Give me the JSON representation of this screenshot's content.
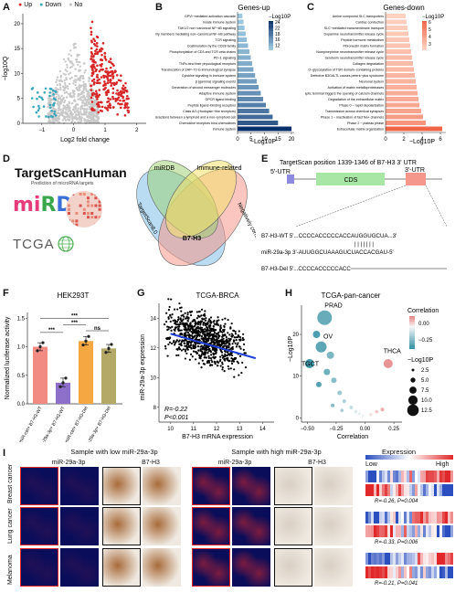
{
  "letters": {
    "A": "A",
    "B": "B",
    "C": "C",
    "D": "D",
    "E": "E",
    "F": "F",
    "G": "G",
    "H": "H",
    "I": "I"
  },
  "panelA": {
    "legend": [
      {
        "label": "Up",
        "color": "#d62728"
      },
      {
        "label": "Down",
        "color": "#3aa6b9"
      },
      {
        "label": "No",
        "color": "#bdbdbd"
      }
    ],
    "xlabel": "Log2 fold change",
    "ylabel": "−log10Q",
    "xticks": [
      "−1",
      "0",
      "1",
      "2"
    ],
    "yticks": [
      "0",
      "5",
      "10",
      "15",
      "20"
    ]
  },
  "panelB": {
    "title": "Genes-up",
    "xlabel": "−Log10P",
    "legend_title": "−Log10P",
    "legend_ticks": [
      "24",
      "22",
      "18",
      "16",
      "12"
    ],
    "xticks": [
      "0",
      "5",
      "10",
      "15",
      "20"
    ],
    "color_low": "#9ecae1",
    "color_high": "#08306b",
    "terms": [
      {
        "label": "GPVI−mediated activation cascade",
        "value": 1.8
      },
      {
        "label": "Innate immune system",
        "value": 2.2
      },
      {
        "label": "TAK1/2 non−canonical NF−kB signaling",
        "value": 2.6
      },
      {
        "label": "TNF receptor superfamily members mediating non−canonical NF−kB pathway",
        "value": 3.0
      },
      {
        "label": "TCR signaling",
        "value": 3.4
      },
      {
        "label": "Costimulation by the CD28 family",
        "value": 3.9
      },
      {
        "label": "Phosphorylation of CD3 and TCR zeta chains",
        "value": 4.4
      },
      {
        "label": "PD−1 signaling",
        "value": 4.9
      },
      {
        "label": "TNFs bind their physiological receptors",
        "value": 5.4
      },
      {
        "label": "Translocation of ZAP−70 to immunological synapse",
        "value": 5.9
      },
      {
        "label": "Cytokine signaling in immune system",
        "value": 6.5
      },
      {
        "label": "β (gamma) signaling events",
        "value": 7.1
      },
      {
        "label": "Generation of second messenger molecules",
        "value": 7.8
      },
      {
        "label": "Adaptive immune system",
        "value": 8.6
      },
      {
        "label": "GPCR ligand binding",
        "value": 9.5
      },
      {
        "label": "Peptide ligand−binding receptors",
        "value": 10.5
      },
      {
        "label": "Class A/1 (rhodopsin−like receptors)",
        "value": 11.7
      },
      {
        "label": "Immunoregulatory interactions between a lymphoid and a non−lymphoid cell",
        "value": 13.0
      },
      {
        "label": "Chemokine receptors bind chemokines",
        "value": 15.0
      },
      {
        "label": "Immune system",
        "value": 20.0
      }
    ]
  },
  "panelC": {
    "title": "Genes-down",
    "xlabel": "−Log10P",
    "legend_title": "−Log10P",
    "legend_ticks": [
      "6",
      "5",
      "4",
      "3"
    ],
    "xticks": [
      "0",
      "2",
      "4",
      "6"
    ],
    "color_low": "#fdd0c0",
    "color_high": "#ef6548",
    "terms": [
      {
        "label": "Amine compound SLC transporters",
        "value": 2.2
      },
      {
        "label": "Cardiac conduction",
        "value": 2.3
      },
      {
        "label": "SLC−mediated transmembrane transport",
        "value": 2.4
      },
      {
        "label": "Dopamine neurotransmitter release cycle",
        "value": 2.5
      },
      {
        "label": "Peptide hormone metabolism",
        "value": 2.6
      },
      {
        "label": "Fibronectin matrix formation",
        "value": 2.7
      },
      {
        "label": "Norepinephrine neurotransmitter release cycle",
        "value": 2.8
      },
      {
        "label": "Serotonin neurotransmitter release cycle",
        "value": 2.9
      },
      {
        "label": "Collagen degradation",
        "value": 3.0
      },
      {
        "label": "O−glycosylation of TSR domain−containing proteins",
        "value": 3.1
      },
      {
        "label": "Defective B3GALTL causes peters−plus syndrome",
        "value": 3.2
      },
      {
        "label": "Neuronal system",
        "value": 3.3
      },
      {
        "label": "Activation of matrix metalloproteinases",
        "value": 3.4
      },
      {
        "label": "Depolarization of the presynaptic terminal triggers the opening of calcium channels",
        "value": 3.5
      },
      {
        "label": "Degradation of the extracellular matrix",
        "value": 3.6
      },
      {
        "label": "Phase 0 − rapid depolarisation",
        "value": 3.7
      },
      {
        "label": "Transmission across chemical synapses",
        "value": 3.9
      },
      {
        "label": "Phase 1 − inactivation of fast Na+ channels",
        "value": 4.1
      },
      {
        "label": "Phase 2 − plateau phase",
        "value": 4.4
      },
      {
        "label": "Extracellular matrix organization",
        "value": 6.2
      }
    ]
  },
  "panelD": {
    "logo1": "TargetScanHuman",
    "logo1_sub": "Prediction of microRNA targets",
    "logo2": "miRDB",
    "logo3": "TCGA",
    "venn_labels": {
      "mirdb": "miRDB",
      "immune": "Immune-related",
      "targetscan": "TargetScan8.0",
      "neg": "Negatively correlated",
      "center": "B7-H3"
    }
  },
  "panelE": {
    "title": "TargetScan position 1339-1346 of B7-H3 3' UTR",
    "utr5": "5'-UTR",
    "cds": "CDS",
    "utr3": "3'-UTR",
    "wt": "B7-H3-WT 5'...CCCCACCCCCACCAUGGUGCUA...3'",
    "mir": "miR-29a-3p 3'-AUUGGCUAAAGUCUACCACGAU-5'",
    "del": "B7-H3-Del 5'...CCCCACCCCCACC"
  },
  "panelF": {
    "title": "HEK293T",
    "ylabel": "Normalized luciferase activity",
    "yticks": [
      "0.0",
      "0.5",
      "1.0",
      "1.5"
    ],
    "ylim": [
      0,
      1.6
    ],
    "groups": [
      {
        "label": "miR-ctrl+ B7-H3-WT",
        "value": 1.0,
        "color": "#f28b82",
        "points": [
          0.93,
          1.0,
          1.07
        ]
      },
      {
        "label": "miR-29a-3p+ B7-H3-WT",
        "value": 0.37,
        "color": "#8e6fc9",
        "points": [
          0.3,
          0.37,
          0.45
        ]
      },
      {
        "label": "miR-ctrl+ B7-H3-Del",
        "value": 1.1,
        "color": "#f5a742",
        "points": [
          1.03,
          1.1,
          1.18
        ]
      },
      {
        "label": "miR-29a-3p+ B7-H3-Del",
        "value": 0.97,
        "color": "#b5a968",
        "points": [
          0.9,
          0.97,
          1.04
        ]
      }
    ],
    "sig": [
      "***",
      "***",
      "***",
      "ns"
    ]
  },
  "panelG": {
    "title": "TCGA-BRCA",
    "xlabel": "B7-H3 mRNA expression",
    "ylabel": "miR-29a-3p expression",
    "xticks": [
      "10",
      "11",
      "12",
      "13",
      "14"
    ],
    "yticks": [
      "8",
      "10",
      "12",
      "14"
    ],
    "r": "R=-0.22",
    "p": "P<0.001"
  },
  "panelH": {
    "title": "TCGA-pan-cancer",
    "xlabel": "Correlation",
    "ylabel": "−Log10P",
    "xticks": [
      "−0.50",
      "−0.25",
      "0.00",
      "0.25"
    ],
    "yticks": [
      "0",
      "10",
      "20"
    ],
    "labels": [
      "PRAD",
      "OV",
      "TGCT",
      "THCA"
    ],
    "legend_title": "Correlation",
    "legend_ticks": [
      "0.00",
      "−0.25"
    ],
    "size_title": "−Log10P",
    "size_ticks": [
      "2.5",
      "5.0",
      "7.5",
      "10.0",
      "12.5"
    ]
  },
  "panelI": {
    "low_title": "Sample with low miR-29a-3p",
    "high_title": "Sample with high miR-29a-3p",
    "col_mir": "miR-29a-3p",
    "col_b7": "B7-H3",
    "expression": "Expression",
    "low": "Low",
    "high": "High",
    "rows": [
      {
        "label": "Breast cancer",
        "stat": "R=-0.26, P=0.004"
      },
      {
        "label": "Lung cancer",
        "stat": "R=-0.33, P=0.006"
      },
      {
        "label": "Melanoma",
        "stat": "R=-0.21, P=0.041"
      }
    ]
  }
}
